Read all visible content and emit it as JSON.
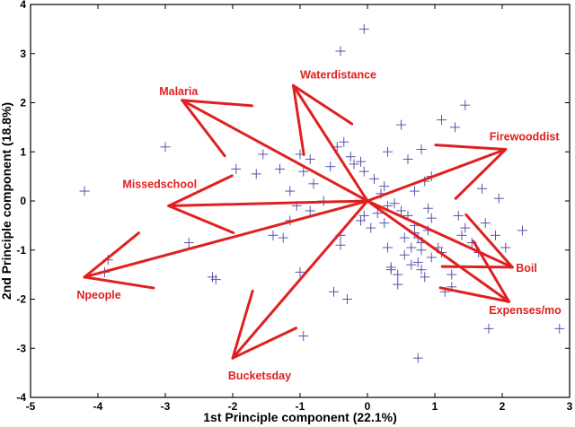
{
  "chart_data": {
    "type": "scatter",
    "subtype": "biplot",
    "title": "",
    "xlabel": "1st Principle component (22.1%)",
    "ylabel": "2nd Principle component (18.8%)",
    "xlim": [
      -5,
      3
    ],
    "ylim": [
      -4,
      4
    ],
    "xticks": [
      -5,
      -4,
      -3,
      -2,
      -1,
      0,
      1,
      2,
      3
    ],
    "yticks": [
      -4,
      -3,
      -2,
      -1,
      0,
      1,
      2,
      3,
      4
    ],
    "grid": false,
    "colors": {
      "points": "#5555aa",
      "vectors": "#e02020",
      "axes": "#000000",
      "background": "#ffffff"
    },
    "points": {
      "marker": "+",
      "x": [
        -0.05,
        -0.4,
        -3.0,
        -1.95,
        -1.55,
        -1.65,
        -1.3,
        -1.15,
        -1.0,
        -0.95,
        -0.85,
        -0.8,
        -0.55,
        -0.45,
        -0.35,
        -0.25,
        -0.2,
        -0.1,
        -0.05,
        0.1,
        0.3,
        0.5,
        0.6,
        0.8,
        0.95,
        0.85,
        0.7,
        1.1,
        1.45,
        1.3,
        1.7,
        1.95,
        -4.2,
        -3.85,
        -3.9,
        -2.65,
        -2.3,
        -2.25,
        -1.4,
        -1.25,
        -1.15,
        -1.05,
        -0.85,
        -0.65,
        -0.4,
        -0.4,
        -0.1,
        -0.05,
        0.05,
        0.15,
        0.25,
        0.3,
        0.35,
        0.45,
        0.55,
        0.65,
        0.75,
        0.8,
        0.9,
        0.95,
        1.05,
        1.15,
        1.25,
        1.35,
        1.45,
        1.55,
        1.65,
        1.75,
        1.9,
        2.05,
        2.3,
        2.85,
        0.35,
        0.45,
        0.55,
        0.65,
        0.7,
        0.75,
        0.8,
        0.85,
        0.9,
        0.95,
        0.3,
        0.4,
        0.5,
        0.6,
        0.7,
        0.8,
        0.2,
        0.25,
        1.1,
        1.25,
        1.4,
        1.8,
        0.75,
        -0.95,
        -1.0,
        -0.3,
        -0.5
      ],
      "y": [
        3.5,
        3.05,
        1.1,
        0.65,
        0.95,
        0.55,
        0.65,
        0.2,
        0.95,
        0.6,
        0.85,
        0.35,
        0.7,
        1.1,
        1.2,
        0.9,
        0.75,
        0.8,
        0.6,
        0.45,
        1.0,
        1.55,
        0.85,
        1.05,
        0.5,
        0.4,
        0.2,
        1.65,
        1.95,
        1.5,
        0.25,
        0.05,
        0.2,
        -1.2,
        -1.45,
        -0.85,
        -1.55,
        -1.6,
        -0.7,
        -0.75,
        -0.4,
        -0.1,
        -0.2,
        0.0,
        -0.7,
        -0.9,
        -0.4,
        -0.3,
        -0.55,
        -0.25,
        -0.45,
        -0.95,
        -1.35,
        -1.5,
        -0.75,
        -0.95,
        -1.25,
        -1.4,
        -0.6,
        -1.15,
        -0.95,
        -1.85,
        -1.75,
        -0.3,
        -0.55,
        -0.85,
        -1.05,
        -0.45,
        -0.7,
        -0.95,
        -0.6,
        -2.6,
        -1.4,
        -1.7,
        -1.1,
        -1.3,
        -0.5,
        -0.75,
        -1.0,
        -1.55,
        -0.15,
        -0.35,
        -0.1,
        -0.05,
        -0.2,
        -0.3,
        -0.65,
        -0.85,
        0.15,
        0.3,
        -1.05,
        -1.5,
        -0.7,
        -2.6,
        -3.2,
        -2.75,
        -1.45,
        -2.0,
        -1.85
      ]
    },
    "vectors": [
      {
        "label": "Waterdistance",
        "x": -1.1,
        "y": 2.35
      },
      {
        "label": "Malaria",
        "x": -2.75,
        "y": 2.05
      },
      {
        "label": "Missedschool",
        "x": -2.95,
        "y": -0.1
      },
      {
        "label": "Npeople",
        "x": -4.2,
        "y": -1.55
      },
      {
        "label": "Bucketsday",
        "x": -2.0,
        "y": -3.2
      },
      {
        "label": "Firewooddist",
        "x": 2.05,
        "y": 1.05
      },
      {
        "label": "Boil",
        "x": 2.15,
        "y": -1.35
      },
      {
        "label": "Expenses/mo",
        "x": 2.1,
        "y": -2.05
      }
    ]
  }
}
